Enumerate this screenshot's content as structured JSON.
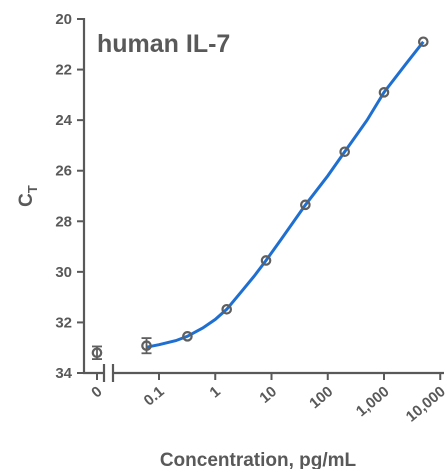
{
  "chart_data": {
    "type": "scatter",
    "title": "human IL-7",
    "xlabel": "Concentration, pg/mL",
    "ylabel": "C",
    "ylabel_sub": "T",
    "y_inverted": true,
    "ylim": [
      20,
      34
    ],
    "yticks": [
      {
        "v": 20,
        "label": "20"
      },
      {
        "v": 22,
        "label": "22"
      },
      {
        "v": 24,
        "label": "24"
      },
      {
        "v": 26,
        "label": "26"
      },
      {
        "v": 28,
        "label": "28"
      },
      {
        "v": 30,
        "label": "30"
      },
      {
        "v": 32,
        "label": "32"
      },
      {
        "v": 34,
        "label": "34"
      }
    ],
    "x_scale": "log",
    "x_broken_axis": true,
    "xticks": [
      {
        "v": 0,
        "label": "0"
      },
      {
        "v": 0.1,
        "label": "0.1"
      },
      {
        "v": 1,
        "label": "1"
      },
      {
        "v": 10,
        "label": "10"
      },
      {
        "v": 100,
        "label": "100"
      },
      {
        "v": 1000,
        "label": "1,000"
      },
      {
        "v": 10000,
        "label": "10,000"
      }
    ],
    "points": [
      {
        "x": 0,
        "y": 33.2,
        "err": 0.25
      },
      {
        "x": 0.06,
        "y": 32.92,
        "err": 0.3
      },
      {
        "x": 0.32,
        "y": 32.55,
        "err": 0
      },
      {
        "x": 1.6,
        "y": 31.48,
        "err": 0
      },
      {
        "x": 8,
        "y": 29.55,
        "err": 0
      },
      {
        "x": 40,
        "y": 27.35,
        "err": 0
      },
      {
        "x": 200,
        "y": 25.25,
        "err": 0
      },
      {
        "x": 1000,
        "y": 22.9,
        "err": 0
      },
      {
        "x": 5000,
        "y": 20.9,
        "err": 0
      }
    ],
    "curve": [
      {
        "x": 0.06,
        "y": 32.98
      },
      {
        "x": 0.1,
        "y": 32.88
      },
      {
        "x": 0.2,
        "y": 32.72
      },
      {
        "x": 0.32,
        "y": 32.55
      },
      {
        "x": 0.6,
        "y": 32.22
      },
      {
        "x": 1.0,
        "y": 31.88
      },
      {
        "x": 1.6,
        "y": 31.48
      },
      {
        "x": 3,
        "y": 30.75
      },
      {
        "x": 5,
        "y": 30.15
      },
      {
        "x": 8,
        "y": 29.55
      },
      {
        "x": 15,
        "y": 28.7
      },
      {
        "x": 40,
        "y": 27.35
      },
      {
        "x": 100,
        "y": 26.2
      },
      {
        "x": 200,
        "y": 25.25
      },
      {
        "x": 500,
        "y": 24.0
      },
      {
        "x": 1000,
        "y": 22.9
      },
      {
        "x": 2500,
        "y": 21.75
      },
      {
        "x": 5000,
        "y": 20.9
      }
    ],
    "grid": false,
    "colors": {
      "curve": "#1f6fd1",
      "points": "#5f5f5f",
      "axes": "#595959"
    }
  }
}
